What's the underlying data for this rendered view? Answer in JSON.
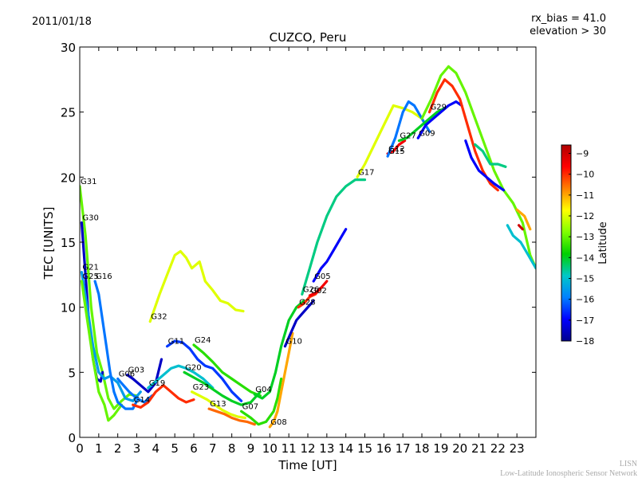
{
  "header": {
    "date": "2011/01/18",
    "rx_bias": "rx_bias = 41.0",
    "elevation": "elevation > 30"
  },
  "footer": {
    "line1": "LISN",
    "line2": "Low-Latitude Ionospheric Sensor Network"
  },
  "chart_data": {
    "type": "scatter",
    "title": "CUZCO, Peru",
    "xlabel": "Time [UT]",
    "ylabel": "TEC [UNITS]",
    "xlim": [
      0,
      24
    ],
    "ylim": [
      0,
      30
    ],
    "xticks": [
      "0",
      "1",
      "2",
      "3",
      "4",
      "5",
      "6",
      "7",
      "8",
      "9",
      "10",
      "11",
      "12",
      "13",
      "14",
      "15",
      "16",
      "17",
      "18",
      "19",
      "20",
      "21",
      "22",
      "23"
    ],
    "yticks": [
      "0",
      "5",
      "10",
      "15",
      "20",
      "25",
      "30"
    ],
    "grid": false,
    "colorbar": {
      "label": "Latitude",
      "range": [
        -18,
        -8.6
      ],
      "ticks": [
        "-9",
        "-10",
        "-11",
        "-12",
        "-13",
        "-14",
        "-15",
        "-16",
        "-17",
        "-18"
      ],
      "colors": [
        "#00008f",
        "#0000ff",
        "#0080ff",
        "#00c8c8",
        "#00d000",
        "#80ff00",
        "#ffff00",
        "#ff8000",
        "#ff0000",
        "#b00000"
      ]
    },
    "series": [
      {
        "name": "G31",
        "lat": -13.0,
        "points": [
          [
            0.0,
            19.3
          ],
          [
            0.3,
            15.5
          ],
          [
            0.6,
            10.0
          ],
          [
            0.9,
            6.5
          ],
          [
            1.2,
            5.0
          ],
          [
            1.5,
            3.0
          ],
          [
            1.8,
            2.2
          ],
          [
            2.2,
            2.8
          ],
          [
            2.6,
            3.3
          ],
          [
            3.0,
            3.2
          ]
        ]
      },
      {
        "name": "G30",
        "lat": -17.5,
        "points": [
          [
            0.1,
            16.5
          ],
          [
            0.3,
            12.5
          ],
          [
            0.5,
            8.5
          ],
          [
            0.7,
            6.0
          ],
          [
            0.9,
            4.5
          ],
          [
            1.1,
            4.3
          ],
          [
            1.2,
            5.0
          ]
        ]
      },
      {
        "name": "G21",
        "lat": -15.5,
        "points": [
          [
            0.1,
            12.7
          ],
          [
            0.4,
            10.0
          ],
          [
            0.7,
            7.0
          ],
          [
            1.0,
            5.0
          ],
          [
            1.3,
            4.5
          ],
          [
            1.6,
            4.7
          ],
          [
            2.0,
            4.2
          ],
          [
            2.4,
            3.0
          ],
          [
            2.8,
            2.8
          ],
          [
            3.2,
            3.5
          ]
        ]
      },
      {
        "name": "G25",
        "lat": -13.0,
        "points": [
          [
            0.1,
            12.0
          ],
          [
            0.4,
            9.0
          ],
          [
            0.7,
            6.0
          ],
          [
            1.0,
            3.5
          ],
          [
            1.3,
            2.5
          ],
          [
            1.5,
            1.3
          ],
          [
            1.8,
            1.7
          ],
          [
            2.2,
            2.5
          ]
        ]
      },
      {
        "name": "G16",
        "lat": -16.0,
        "points": [
          [
            0.8,
            12.0
          ],
          [
            1.0,
            11.0
          ],
          [
            1.2,
            9.0
          ],
          [
            1.4,
            7.0
          ],
          [
            1.6,
            5.0
          ],
          [
            1.8,
            3.5
          ],
          [
            2.0,
            2.7
          ],
          [
            2.4,
            2.2
          ],
          [
            2.8,
            2.2
          ],
          [
            3.0,
            2.8
          ]
        ]
      },
      {
        "name": "G32",
        "lat": -12.0,
        "points": [
          [
            3.7,
            8.9
          ],
          [
            4.2,
            11.0
          ],
          [
            4.6,
            12.5
          ],
          [
            5.0,
            14.0
          ],
          [
            5.3,
            14.3
          ],
          [
            5.6,
            13.8
          ],
          [
            5.9,
            13.0
          ],
          [
            6.3,
            13.5
          ],
          [
            6.6,
            12.0
          ],
          [
            7.0,
            11.3
          ],
          [
            7.4,
            10.5
          ],
          [
            7.8,
            10.3
          ],
          [
            8.2,
            9.8
          ],
          [
            8.6,
            9.7
          ]
        ]
      },
      {
        "name": "G03",
        "lat": -17.5,
        "points": [
          [
            2.5,
            4.8
          ],
          [
            2.8,
            4.5
          ],
          [
            3.2,
            4.0
          ],
          [
            3.6,
            3.5
          ],
          [
            4.0,
            4.2
          ],
          [
            4.3,
            6.0
          ]
        ]
      },
      {
        "name": "G06",
        "lat": -16.0,
        "points": [
          [
            2.0,
            4.5
          ],
          [
            2.3,
            4.0
          ],
          [
            2.6,
            3.5
          ],
          [
            3.0,
            3.0
          ],
          [
            3.4,
            2.7
          ],
          [
            3.8,
            3.2
          ]
        ]
      },
      {
        "name": "G14",
        "lat": -10.0,
        "points": [
          [
            2.8,
            2.5
          ],
          [
            3.2,
            2.3
          ],
          [
            3.6,
            2.7
          ],
          [
            4.0,
            3.5
          ],
          [
            4.4,
            4.0
          ],
          [
            4.8,
            3.5
          ],
          [
            5.2,
            3.0
          ],
          [
            5.6,
            2.7
          ],
          [
            6.0,
            2.9
          ]
        ]
      },
      {
        "name": "G19",
        "lat": -15.0,
        "points": [
          [
            3.6,
            3.8
          ],
          [
            4.0,
            4.3
          ],
          [
            4.4,
            4.8
          ],
          [
            4.8,
            5.3
          ],
          [
            5.2,
            5.5
          ],
          [
            5.6,
            5.3
          ],
          [
            6.0,
            5.0
          ],
          [
            6.5,
            4.5
          ],
          [
            7.0,
            3.8
          ]
        ]
      },
      {
        "name": "G11",
        "lat": -16.5,
        "points": [
          [
            4.6,
            7.0
          ],
          [
            5.0,
            7.4
          ],
          [
            5.4,
            7.3
          ],
          [
            5.8,
            6.8
          ],
          [
            6.2,
            6.0
          ],
          [
            6.6,
            5.5
          ],
          [
            7.0,
            5.3
          ],
          [
            7.5,
            4.5
          ],
          [
            8.0,
            3.5
          ],
          [
            8.5,
            2.8
          ]
        ]
      },
      {
        "name": "G24",
        "lat": -13.5,
        "points": [
          [
            6.0,
            7.1
          ],
          [
            6.5,
            6.5
          ],
          [
            7.0,
            5.8
          ],
          [
            7.5,
            5.0
          ],
          [
            8.0,
            4.5
          ],
          [
            8.5,
            4.0
          ],
          [
            9.0,
            3.5
          ],
          [
            9.5,
            3.2
          ]
        ]
      },
      {
        "name": "G20",
        "lat": -14.0,
        "points": [
          [
            5.5,
            5.0
          ],
          [
            6.0,
            4.6
          ],
          [
            6.5,
            4.2
          ],
          [
            7.0,
            3.7
          ],
          [
            7.5,
            3.2
          ],
          [
            8.0,
            2.8
          ],
          [
            8.5,
            2.5
          ],
          [
            9.0,
            2.7
          ],
          [
            9.5,
            3.5
          ]
        ]
      },
      {
        "name": "G23",
        "lat": -12.0,
        "points": [
          [
            5.9,
            3.5
          ],
          [
            6.3,
            3.2
          ],
          [
            6.7,
            2.9
          ],
          [
            7.1,
            2.5
          ],
          [
            7.5,
            2.1
          ],
          [
            7.9,
            1.8
          ],
          [
            8.3,
            1.6
          ],
          [
            8.7,
            1.5
          ]
        ]
      },
      {
        "name": "G13",
        "lat": -10.5,
        "points": [
          [
            6.8,
            2.2
          ],
          [
            7.2,
            2.0
          ],
          [
            7.6,
            1.8
          ],
          [
            8.0,
            1.5
          ],
          [
            8.4,
            1.3
          ],
          [
            8.8,
            1.2
          ],
          [
            9.2,
            1.0
          ]
        ]
      },
      {
        "name": "G07",
        "lat": -13.5,
        "points": [
          [
            8.5,
            2.0
          ],
          [
            9.0,
            1.5
          ],
          [
            9.4,
            1.0
          ],
          [
            9.8,
            1.2
          ],
          [
            10.2,
            2.0
          ],
          [
            10.4,
            3.0
          ],
          [
            10.6,
            4.5
          ]
        ]
      },
      {
        "name": "G04",
        "lat": -14.0,
        "points": [
          [
            9.2,
            3.3
          ],
          [
            9.6,
            3.0
          ],
          [
            10.0,
            3.5
          ],
          [
            10.3,
            5.0
          ],
          [
            10.6,
            7.0
          ],
          [
            11.0,
            9.0
          ],
          [
            11.4,
            10.0
          ],
          [
            11.8,
            10.5
          ]
        ]
      },
      {
        "name": "G08",
        "lat": -11.0,
        "points": [
          [
            10.0,
            0.8
          ],
          [
            10.2,
            1.2
          ],
          [
            10.4,
            2.0
          ],
          [
            10.6,
            3.5
          ],
          [
            10.8,
            5.0
          ],
          [
            11.0,
            6.5
          ],
          [
            11.2,
            8.0
          ]
        ]
      },
      {
        "name": "G10",
        "lat": -17.5,
        "points": [
          [
            10.8,
            7.0
          ],
          [
            11.1,
            8.0
          ],
          [
            11.4,
            9.0
          ],
          [
            11.7,
            9.5
          ],
          [
            12.0,
            10.0
          ],
          [
            12.3,
            10.5
          ]
        ]
      },
      {
        "name": "G28",
        "lat": -10.0,
        "points": [
          [
            11.5,
            10.0
          ],
          [
            11.8,
            10.3
          ],
          [
            12.1,
            10.8
          ],
          [
            12.4,
            11.0
          ],
          [
            12.7,
            11.5
          ]
        ]
      },
      {
        "name": "G02",
        "lat": -9.5,
        "points": [
          [
            12.1,
            10.9
          ],
          [
            12.4,
            11.1
          ],
          [
            12.7,
            11.5
          ],
          [
            13.0,
            12.0
          ]
        ]
      },
      {
        "name": "G05",
        "lat": -17.0,
        "points": [
          [
            12.3,
            12.0
          ],
          [
            12.7,
            13.0
          ],
          [
            13.0,
            13.5
          ],
          [
            13.4,
            14.5
          ],
          [
            13.8,
            15.5
          ],
          [
            14.0,
            16.0
          ]
        ]
      },
      {
        "name": "G26",
        "lat": -14.5,
        "points": [
          [
            11.7,
            11.0
          ],
          [
            12.1,
            13.0
          ],
          [
            12.5,
            15.0
          ],
          [
            13.0,
            17.0
          ],
          [
            13.5,
            18.5
          ],
          [
            14.0,
            19.3
          ],
          [
            14.5,
            19.8
          ],
          [
            15.0,
            19.8
          ]
        ]
      },
      {
        "name": "G17",
        "lat": -12.0,
        "points": [
          [
            14.6,
            20.0
          ],
          [
            15.0,
            21.0
          ],
          [
            15.5,
            22.5
          ],
          [
            16.0,
            24.0
          ],
          [
            16.5,
            25.5
          ],
          [
            17.0,
            25.3
          ],
          [
            17.5,
            25.0
          ],
          [
            18.0,
            24.5
          ]
        ]
      },
      {
        "name": "G12",
        "lat": -9.5,
        "points": [
          [
            16.2,
            21.8
          ],
          [
            16.5,
            22.0
          ],
          [
            16.8,
            22.5
          ],
          [
            17.1,
            22.8
          ]
        ]
      },
      {
        "name": "G15",
        "lat": -16.0,
        "points": [
          [
            16.2,
            21.6
          ],
          [
            16.6,
            23.0
          ],
          [
            17.0,
            25.0
          ],
          [
            17.3,
            25.8
          ],
          [
            17.6,
            25.5
          ],
          [
            18.0,
            24.5
          ],
          [
            18.4,
            23.5
          ]
        ]
      },
      {
        "name": "G27",
        "lat": -14.0,
        "points": [
          [
            16.8,
            22.8
          ],
          [
            17.2,
            23.0
          ],
          [
            17.6,
            23.5
          ],
          [
            18.0,
            24.0
          ],
          [
            18.4,
            24.5
          ],
          [
            18.8,
            25.0
          ],
          [
            19.2,
            25.3
          ]
        ]
      },
      {
        "name": "G09",
        "lat": -17.0,
        "points": [
          [
            17.8,
            23.0
          ],
          [
            18.2,
            24.0
          ],
          [
            18.6,
            24.5
          ],
          [
            19.0,
            25.0
          ],
          [
            19.4,
            25.5
          ],
          [
            19.8,
            25.8
          ],
          [
            20.1,
            25.5
          ]
        ]
      },
      {
        "name": "G29",
        "lat": -10.0,
        "points": [
          [
            18.4,
            25.0
          ],
          [
            18.8,
            26.5
          ],
          [
            19.2,
            27.5
          ],
          [
            19.6,
            27.0
          ],
          [
            20.0,
            26.0
          ],
          [
            20.4,
            24.0
          ],
          [
            20.8,
            22.0
          ],
          [
            21.2,
            20.5
          ],
          [
            21.6,
            19.5
          ],
          [
            22.0,
            19.0
          ]
        ]
      },
      {
        "name": "",
        "lat": -13.0,
        "points": [
          [
            18.0,
            24.5
          ],
          [
            18.5,
            26.0
          ],
          [
            19.0,
            27.8
          ],
          [
            19.4,
            28.5
          ],
          [
            19.8,
            28.0
          ],
          [
            20.3,
            26.5
          ],
          [
            20.8,
            24.5
          ],
          [
            21.3,
            22.5
          ],
          [
            21.8,
            20.5
          ],
          [
            22.3,
            19.0
          ],
          [
            22.8,
            18.0
          ],
          [
            23.3,
            16.5
          ],
          [
            23.7,
            14.0
          ],
          [
            24.0,
            13.0
          ]
        ]
      },
      {
        "name": "",
        "lat": -17.0,
        "points": [
          [
            20.3,
            22.8
          ],
          [
            20.6,
            21.5
          ],
          [
            21.0,
            20.5
          ],
          [
            21.4,
            20.0
          ],
          [
            21.8,
            19.5
          ],
          [
            22.3,
            19.0
          ]
        ]
      },
      {
        "name": "",
        "lat": -14.5,
        "points": [
          [
            20.8,
            22.5
          ],
          [
            21.2,
            22.0
          ],
          [
            21.6,
            21.0
          ],
          [
            22.0,
            21.0
          ],
          [
            22.4,
            20.8
          ]
        ]
      },
      {
        "name": "",
        "lat": -15.0,
        "points": [
          [
            22.5,
            16.3
          ],
          [
            22.8,
            15.5
          ],
          [
            23.2,
            15.0
          ],
          [
            23.6,
            14.0
          ],
          [
            24.0,
            13.0
          ]
        ]
      },
      {
        "name": "",
        "lat": -11.0,
        "points": [
          [
            23.0,
            17.5
          ],
          [
            23.4,
            17.0
          ],
          [
            23.7,
            16.0
          ]
        ]
      },
      {
        "name": "",
        "lat": -9.0,
        "points": [
          [
            23.1,
            16.3
          ],
          [
            23.3,
            16.0
          ]
        ]
      }
    ]
  }
}
